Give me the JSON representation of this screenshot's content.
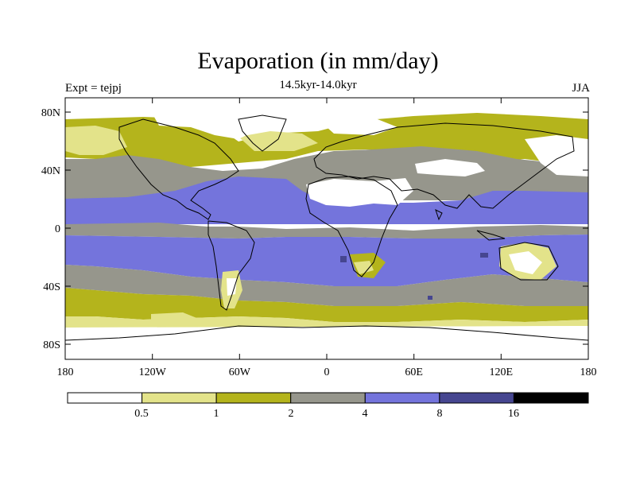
{
  "title": "Evaporation (in mm/day)",
  "subtitle": "14.5kyr-14.0kyr",
  "left_label": "Expt = tejpj",
  "right_label": "JJA",
  "lat_ticks": [
    "80N",
    "40N",
    "0",
    "40S",
    "80S"
  ],
  "lon_ticks": [
    "180",
    "120W",
    "60W",
    "0",
    "60E",
    "120E",
    "180"
  ],
  "legend": {
    "labels": [
      "0.5",
      "1",
      "2",
      "4",
      "8",
      "16"
    ],
    "colors": [
      "#ffffff",
      "#e3e38a",
      "#b4b41c",
      "#96968c",
      "#7474dc",
      "#464690",
      "#000000"
    ]
  }
}
